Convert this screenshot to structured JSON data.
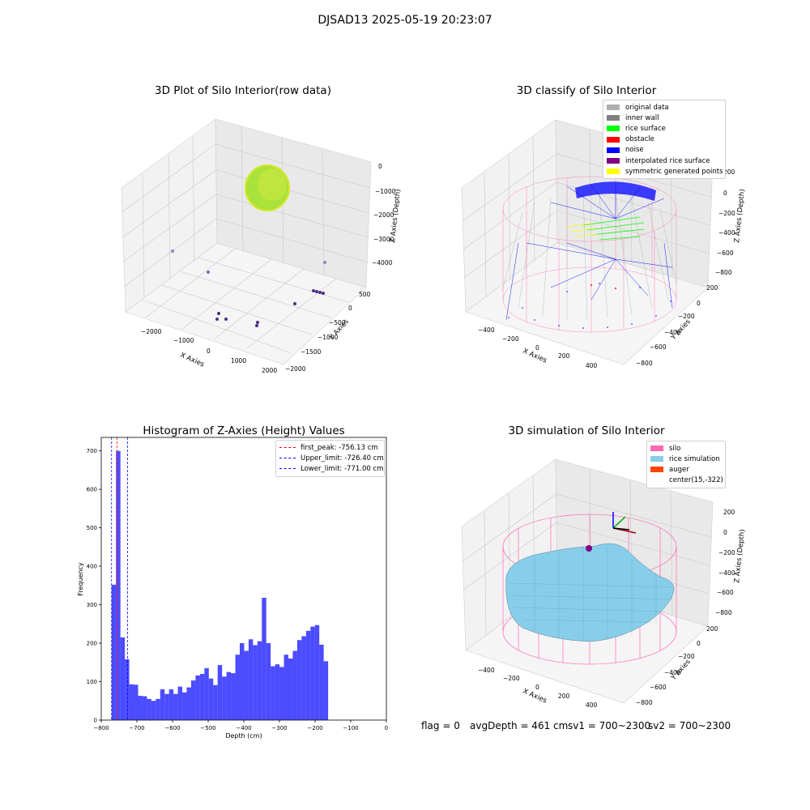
{
  "suptitle": "DJSAD13 2025-05-19 20:23:07",
  "panels": {
    "raw": {
      "title": "3D Plot of Silo Interior(row data)",
      "xlabel": "X Axies",
      "ylabel": "Y Axies",
      "zlabel": "Z Axies (Depth)",
      "xticks": [
        "−2000",
        "−1000",
        "0",
        "1000",
        "2000"
      ],
      "yticks": [
        "500",
        "0",
        "−500",
        "−1000",
        "−1500",
        "−2000"
      ],
      "zticks": [
        "0",
        "−1000",
        "−2000",
        "−3000",
        "−4000"
      ]
    },
    "classify": {
      "title": "3D classify of Silo Interior",
      "xlabel": "X Axies",
      "ylabel": "Y Axies",
      "zlabel": "Z Axies (Depth)",
      "xticks": [
        "−400",
        "−200",
        "0",
        "200",
        "400"
      ],
      "yticks": [
        "200",
        "0",
        "−200",
        "−400",
        "−600",
        "−800"
      ],
      "zticks": [
        "200",
        "0",
        "−200",
        "−400",
        "−600",
        "−800"
      ],
      "legend": [
        {
          "label": "original data",
          "color": "#b0b0b0"
        },
        {
          "label": "inner wall",
          "color": "#808080"
        },
        {
          "label": "rice surface",
          "color": "#00ff00"
        },
        {
          "label": "obstacle",
          "color": "#ff0000"
        },
        {
          "label": "noise",
          "color": "#0000ff"
        },
        {
          "label": "interpolated rice surface",
          "color": "#800080"
        },
        {
          "label": "symmetric generated points",
          "color": "#ffff00"
        }
      ]
    },
    "histogram": {
      "title": "Histogram of Z-Axies (Height) Values",
      "xlabel": "Depth (cm)",
      "ylabel": "Frequency",
      "legend": [
        {
          "label": "first_peak: -756.13 cm",
          "color": "#ff0000"
        },
        {
          "label": "Upper_limit: -726.40 cm",
          "color": "#0000ff"
        },
        {
          "label": "Lower_limit: -771.00 cm",
          "color": "#0000ff"
        }
      ]
    },
    "simulation": {
      "title": "3D simulation of Silo Interior",
      "xlabel": "X Axies",
      "ylabel": "Y Axies",
      "zlabel": "Z Axies (Depth)",
      "xticks": [
        "−400",
        "−200",
        "0",
        "200",
        "400"
      ],
      "yticks": [
        "200",
        "0",
        "−200",
        "−400",
        "−600",
        "−800"
      ],
      "zticks": [
        "200",
        "0",
        "−200",
        "−400",
        "−600",
        "−800"
      ],
      "legend": [
        {
          "label": "silo",
          "color": "#ff69b4"
        },
        {
          "label": "rice simulation",
          "color": "#87ceeb"
        },
        {
          "label": "auger",
          "color": "#ff4500"
        },
        {
          "label": "center(15,-322)",
          "color": ""
        }
      ]
    }
  },
  "footer": {
    "flag": "flag = 0",
    "avg_depth": "avgDepth = 461 cm",
    "sv1": "sv1 = 700~2300",
    "sv2": "sv2 = 700~2300"
  },
  "chart_data": [
    {
      "type": "histogram",
      "title": "Histogram of Z-Axies (Height) Values",
      "xlabel": "Depth (cm)",
      "ylabel": "Frequency",
      "xlim": [
        -800,
        0
      ],
      "ylim": [
        0,
        735
      ],
      "xticks": [
        -800,
        -700,
        -600,
        -500,
        -400,
        -300,
        -200,
        -100,
        0
      ],
      "yticks": [
        0,
        100,
        200,
        300,
        400,
        500,
        600,
        700
      ],
      "bin_start": -771,
      "bin_width": 12.4,
      "counts": [
        352,
        700,
        215,
        158,
        93,
        92,
        63,
        62,
        55,
        50,
        55,
        80,
        68,
        80,
        68,
        87,
        72,
        85,
        103,
        116,
        120,
        135,
        108,
        91,
        143,
        113,
        125,
        122,
        170,
        200,
        180,
        210,
        195,
        205,
        318,
        200,
        140,
        145,
        138,
        170,
        160,
        180,
        208,
        218,
        232,
        243,
        247,
        196,
        153
      ],
      "bar_color": "#0000ff",
      "vlines": [
        {
          "x": -756.13,
          "color": "#ff0000",
          "name": "first_peak: -756.13 cm"
        },
        {
          "x": -726.4,
          "color": "#0000ff",
          "name": "Upper_limit: -726.40 cm"
        },
        {
          "x": -771.0,
          "color": "#0000ff",
          "name": "Lower_limit: -771.00 cm"
        }
      ],
      "legend_position": "top-right",
      "grid": false
    }
  ]
}
